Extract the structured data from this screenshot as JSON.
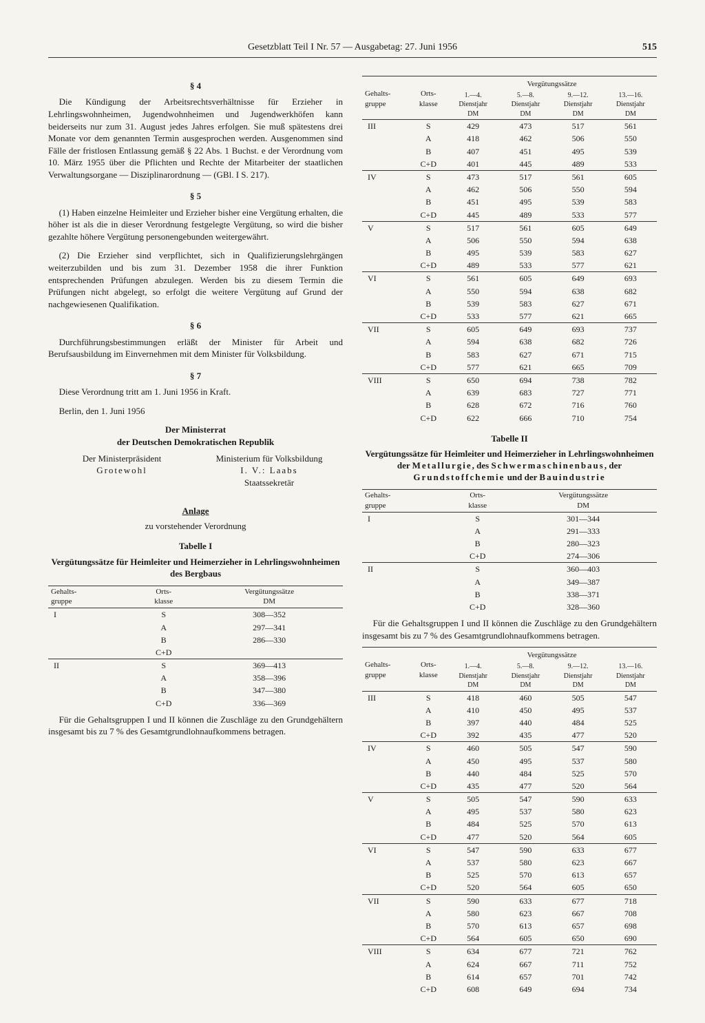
{
  "header": {
    "title": "Gesetzblatt Teil I Nr. 57 — Ausgabetag: 27. Juni 1956",
    "pageNumber": "515"
  },
  "left": {
    "s4_title": "§ 4",
    "s4_text": "Die Kündigung der Arbeitsrechtsverhältnisse für Erzieher in Lehrlingswohnheimen, Jugendwohnheimen und Jugendwerkhöfen kann beiderseits nur zum 31. August jedes Jahres erfolgen. Sie muß spätestens drei Monate vor dem genannten Termin ausgesprochen werden. Ausgenommen sind Fälle der fristlosen Entlassung gemäß § 22 Abs. 1 Buchst. e der Verordnung vom 10. März 1955 über die Pflichten und Rechte der Mitarbeiter der staatlichen Verwaltungsorgane — Disziplinarordnung — (GBl. I S. 217).",
    "s5_title": "§ 5",
    "s5_p1": "(1) Haben einzelne Heimleiter und Erzieher bisher eine Vergütung erhalten, die höher ist als die in dieser Verordnung festgelegte Vergütung, so wird die bisher gezahlte höhere Vergütung personengebunden weitergewährt.",
    "s5_p2": "(2) Die Erzieher sind verpflichtet, sich in Qualifizierungslehrgängen weiterzubilden und bis zum 31. Dezember 1958 die ihrer Funktion entsprechenden Prüfungen abzulegen. Werden bis zu diesem Termin die Prüfungen nicht abgelegt, so erfolgt die weitere Vergütung auf Grund der nachgewiesenen Qualifikation.",
    "s6_title": "§ 6",
    "s6_text": "Durchführungsbestimmungen erläßt der Minister für Arbeit und Berufsausbildung im Einvernehmen mit dem Minister für Volksbildung.",
    "s7_title": "§ 7",
    "s7_text": "Diese Verordnung tritt am 1. Juni 1956 in Kraft.",
    "place_date": "Berlin, den 1. Juni 1956",
    "council_line1": "Der Ministerrat",
    "council_line2": "der Deutschen Demokratischen Republik",
    "sig_left_title": "Der Ministerpräsident",
    "sig_left_name": "Grotewohl",
    "sig_right_title": "Ministerium für Volksbildung",
    "sig_right_name": "I. V.: Laabs",
    "sig_right_sub": "Staatssekretär",
    "anlage": "Anlage",
    "anlage_sub": "zu vorstehender Verordnung",
    "tab1_title": "Tabelle I",
    "tab1_subtitle": "Vergütungssätze für Heimleiter und Heimerzieher in Lehrlingswohnheimen des Bergbaus",
    "tab1_headers": {
      "h1": "Gehalts-\ngruppe",
      "h2": "Orts-\nklasse",
      "h3": "Vergütungssätze\nDM"
    },
    "tab1_groups": [
      {
        "g": "I",
        "rows": [
          [
            "S",
            "308—352"
          ],
          [
            "A",
            "297—341"
          ],
          [
            "B",
            "286—330"
          ],
          [
            "C+D",
            ""
          ]
        ]
      },
      {
        "g": "II",
        "rows": [
          [
            "S",
            "369—413"
          ],
          [
            "A",
            "358—396"
          ],
          [
            "B",
            "347—380"
          ],
          [
            "C+D",
            "336—369"
          ]
        ]
      }
    ],
    "note1": "Für die Gehaltsgruppen I und II können die Zuschläge zu den Grundgehältern insgesamt bis zu 7 % des Gesamtgrundlohnaufkommens betragen."
  },
  "right": {
    "tabA_headers": {
      "h1": "Gehalts-\ngruppe",
      "h2": "Orts-\nklasse",
      "span": "Vergütungssätze",
      "c1": "1.—4.\nDienstjahr\nDM",
      "c2": "5.—8.\nDienstjahr\nDM",
      "c3": "9.—12.\nDienstjahr\nDM",
      "c4": "13.—16.\nDienstjahr\nDM"
    },
    "tabA_groups": [
      {
        "g": "III",
        "rows": [
          [
            "S",
            "429",
            "473",
            "517",
            "561"
          ],
          [
            "A",
            "418",
            "462",
            "506",
            "550"
          ],
          [
            "B",
            "407",
            "451",
            "495",
            "539"
          ],
          [
            "C+D",
            "401",
            "445",
            "489",
            "533"
          ]
        ]
      },
      {
        "g": "IV",
        "rows": [
          [
            "S",
            "473",
            "517",
            "561",
            "605"
          ],
          [
            "A",
            "462",
            "506",
            "550",
            "594"
          ],
          [
            "B",
            "451",
            "495",
            "539",
            "583"
          ],
          [
            "C+D",
            "445",
            "489",
            "533",
            "577"
          ]
        ]
      },
      {
        "g": "V",
        "rows": [
          [
            "S",
            "517",
            "561",
            "605",
            "649"
          ],
          [
            "A",
            "506",
            "550",
            "594",
            "638"
          ],
          [
            "B",
            "495",
            "539",
            "583",
            "627"
          ],
          [
            "C+D",
            "489",
            "533",
            "577",
            "621"
          ]
        ]
      },
      {
        "g": "VI",
        "rows": [
          [
            "S",
            "561",
            "605",
            "649",
            "693"
          ],
          [
            "A",
            "550",
            "594",
            "638",
            "682"
          ],
          [
            "B",
            "539",
            "583",
            "627",
            "671"
          ],
          [
            "C+D",
            "533",
            "577",
            "621",
            "665"
          ]
        ]
      },
      {
        "g": "VII",
        "rows": [
          [
            "S",
            "605",
            "649",
            "693",
            "737"
          ],
          [
            "A",
            "594",
            "638",
            "682",
            "726"
          ],
          [
            "B",
            "583",
            "627",
            "671",
            "715"
          ],
          [
            "C+D",
            "577",
            "621",
            "665",
            "709"
          ]
        ]
      },
      {
        "g": "VIII",
        "rows": [
          [
            "S",
            "650",
            "694",
            "738",
            "782"
          ],
          [
            "A",
            "639",
            "683",
            "727",
            "771"
          ],
          [
            "B",
            "628",
            "672",
            "716",
            "760"
          ],
          [
            "C+D",
            "622",
            "666",
            "710",
            "754"
          ]
        ]
      }
    ],
    "tab2_title": "Tabelle II",
    "tab2_subtitle": "Vergütungssätze für Heimleiter und Heimerzieher in Lehrlingswohnheimen der Metallurgie, des Schwermaschinenbaus, der Grundstoffchemie und der Bauindustrie",
    "tab2a_headers": {
      "h1": "Gehalts-\ngruppe",
      "h2": "Orts-\nklasse",
      "h3": "Vergütungssätze\nDM"
    },
    "tab2a_groups": [
      {
        "g": "I",
        "rows": [
          [
            "S",
            "301—344"
          ],
          [
            "A",
            "291—333"
          ],
          [
            "B",
            "280—323"
          ],
          [
            "C+D",
            "274—306"
          ]
        ]
      },
      {
        "g": "II",
        "rows": [
          [
            "S",
            "360—403"
          ],
          [
            "A",
            "349—387"
          ],
          [
            "B",
            "338—371"
          ],
          [
            "C+D",
            "328—360"
          ]
        ]
      }
    ],
    "note2": "Für die Gehaltsgruppen I und II können die Zuschläge zu den Grundgehältern insgesamt bis zu 7 % des Gesamtgrundlohnaufkommens betragen.",
    "tabB_groups": [
      {
        "g": "III",
        "rows": [
          [
            "S",
            "418",
            "460",
            "505",
            "547"
          ],
          [
            "A",
            "410",
            "450",
            "495",
            "537"
          ],
          [
            "B",
            "397",
            "440",
            "484",
            "525"
          ],
          [
            "C+D",
            "392",
            "435",
            "477",
            "520"
          ]
        ]
      },
      {
        "g": "IV",
        "rows": [
          [
            "S",
            "460",
            "505",
            "547",
            "590"
          ],
          [
            "A",
            "450",
            "495",
            "537",
            "580"
          ],
          [
            "B",
            "440",
            "484",
            "525",
            "570"
          ],
          [
            "C+D",
            "435",
            "477",
            "520",
            "564"
          ]
        ]
      },
      {
        "g": "V",
        "rows": [
          [
            "S",
            "505",
            "547",
            "590",
            "633"
          ],
          [
            "A",
            "495",
            "537",
            "580",
            "623"
          ],
          [
            "B",
            "484",
            "525",
            "570",
            "613"
          ],
          [
            "C+D",
            "477",
            "520",
            "564",
            "605"
          ]
        ]
      },
      {
        "g": "VI",
        "rows": [
          [
            "S",
            "547",
            "590",
            "633",
            "677"
          ],
          [
            "A",
            "537",
            "580",
            "623",
            "667"
          ],
          [
            "B",
            "525",
            "570",
            "613",
            "657"
          ],
          [
            "C+D",
            "520",
            "564",
            "605",
            "650"
          ]
        ]
      },
      {
        "g": "VII",
        "rows": [
          [
            "S",
            "590",
            "633",
            "677",
            "718"
          ],
          [
            "A",
            "580",
            "623",
            "667",
            "708"
          ],
          [
            "B",
            "570",
            "613",
            "657",
            "698"
          ],
          [
            "C+D",
            "564",
            "605",
            "650",
            "690"
          ]
        ]
      },
      {
        "g": "VIII",
        "rows": [
          [
            "S",
            "634",
            "677",
            "721",
            "762"
          ],
          [
            "A",
            "624",
            "667",
            "711",
            "752"
          ],
          [
            "B",
            "614",
            "657",
            "701",
            "742"
          ],
          [
            "C+D",
            "608",
            "649",
            "694",
            "734"
          ]
        ]
      }
    ]
  }
}
